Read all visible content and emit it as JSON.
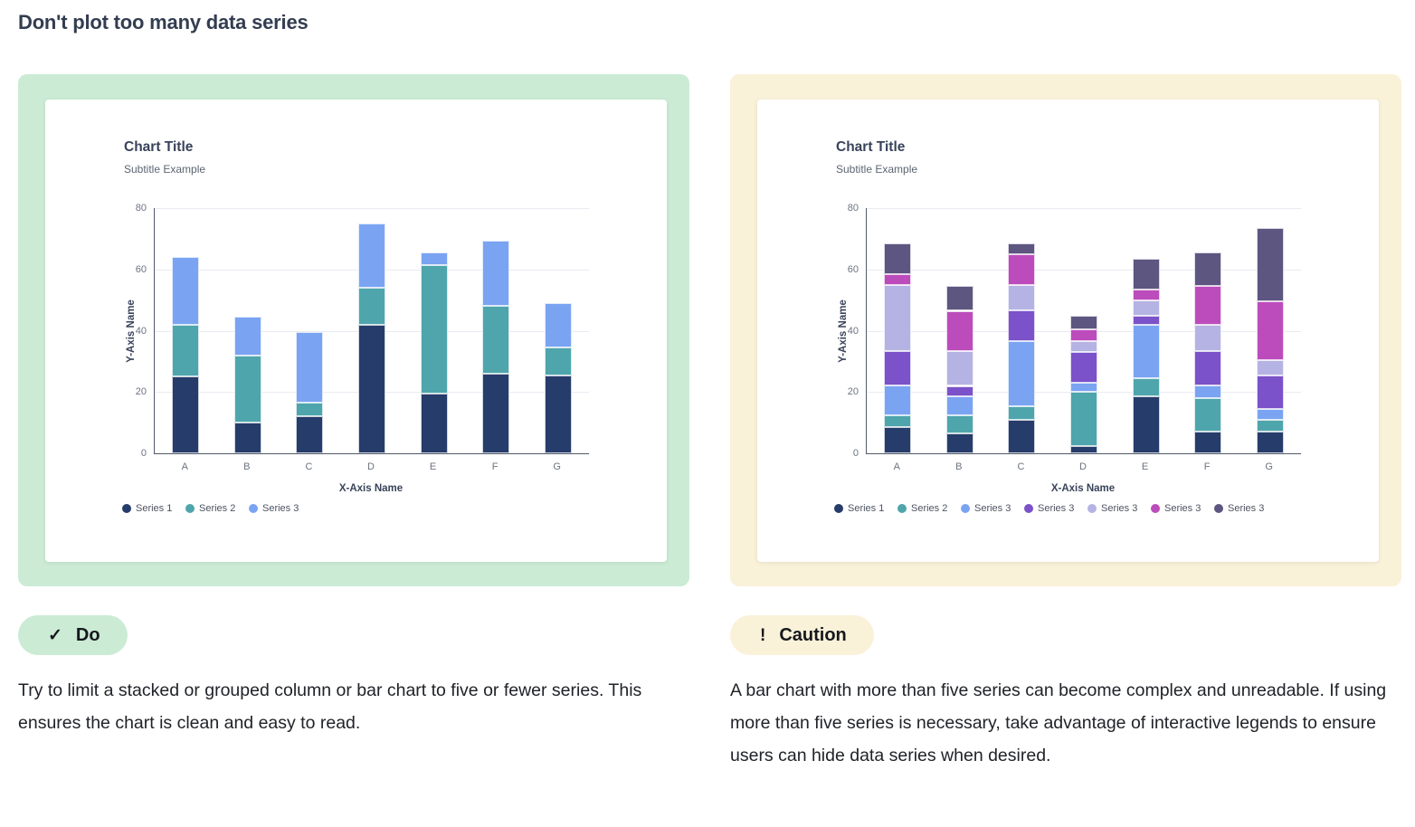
{
  "page": {
    "heading": "Don't plot too many data series"
  },
  "colors": {
    "do_accent": "#CBEBD5",
    "caution_accent": "#FAF1D9",
    "series_navy": "#263C6B",
    "series_teal": "#4FA5AC",
    "series_blue": "#7AA4F2",
    "series_purple": "#7B52C9",
    "series_lavender": "#B5B3E3",
    "series_magenta": "#BC4CBC",
    "series_slate": "#5D5680"
  },
  "do_panel": {
    "badge_label": "Do",
    "badge_icon_glyph": "✓",
    "description": "Try to limit a stacked or grouped column or bar chart to five or fewer series. This ensures the chart is clean and easy to read."
  },
  "caution_panel": {
    "badge_label": "Caution",
    "badge_icon_glyph": "!",
    "description": "A bar chart with more than five series can become complex and unreadable. If using more than five series is necessary, take advantage of interactive legends to ensure users can hide data series when desired."
  },
  "chart_data": [
    {
      "type": "bar",
      "stacked": true,
      "title": "Chart Title",
      "subtitle": "Subtitle Example",
      "xlabel": "X-Axis Name",
      "ylabel": "Y-Axis Name",
      "ylim": [
        0,
        80
      ],
      "yticks": [
        0,
        20,
        40,
        60,
        80
      ],
      "grid": true,
      "legend_position": "bottom",
      "categories": [
        "A",
        "B",
        "C",
        "D",
        "E",
        "F",
        "G"
      ],
      "series": [
        {
          "name": "Series 1",
          "color": "#263C6B",
          "values": [
            25,
            10,
            12,
            42,
            19.5,
            26,
            25.5
          ]
        },
        {
          "name": "Series 2",
          "color": "#4FA5AC",
          "values": [
            17,
            22,
            4.5,
            12,
            42,
            22,
            9
          ]
        },
        {
          "name": "Series 3",
          "color": "#7AA4F2",
          "values": [
            22,
            12.5,
            23,
            21,
            4,
            21.5,
            14.5
          ]
        }
      ]
    },
    {
      "type": "bar",
      "stacked": true,
      "title": "Chart Title",
      "subtitle": "Subtitle Example",
      "xlabel": "X-Axis Name",
      "ylabel": "Y-Axis Name",
      "ylim": [
        0,
        80
      ],
      "yticks": [
        0,
        20,
        40,
        60,
        80
      ],
      "grid": true,
      "legend_position": "bottom",
      "categories": [
        "A",
        "B",
        "C",
        "D",
        "E",
        "F",
        "G"
      ],
      "series": [
        {
          "name": "Series 1",
          "color": "#263C6B",
          "values": [
            8.5,
            6.5,
            11,
            2.5,
            18.5,
            7,
            7
          ]
        },
        {
          "name": "Series 2",
          "color": "#4FA5AC",
          "values": [
            4,
            6,
            4.5,
            17.5,
            6,
            11,
            4
          ]
        },
        {
          "name": "Series 3",
          "color": "#7AA4F2",
          "values": [
            9.5,
            6,
            21,
            3,
            17.5,
            4,
            3.5
          ]
        },
        {
          "name": "Series 3",
          "color": "#7B52C9",
          "values": [
            11.5,
            3.5,
            10,
            10,
            3,
            11.5,
            11
          ]
        },
        {
          "name": "Series 3",
          "color": "#B5B3E3",
          "values": [
            21.5,
            11.5,
            8.5,
            3.5,
            5,
            8.5,
            5
          ]
        },
        {
          "name": "Series 3",
          "color": "#BC4CBC",
          "values": [
            3.5,
            13,
            10,
            4,
            3.5,
            12.5,
            19
          ]
        },
        {
          "name": "Series 3",
          "color": "#5D5680",
          "values": [
            10,
            8,
            3.5,
            4.5,
            10,
            11,
            24
          ]
        }
      ]
    }
  ]
}
